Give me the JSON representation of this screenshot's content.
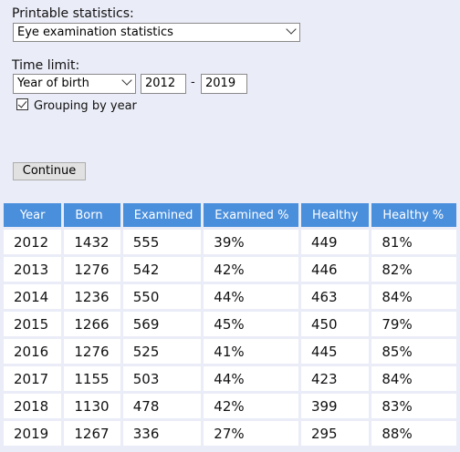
{
  "form": {
    "statistics_label": "Printable statistics:",
    "statistics_value": "Eye examination statistics",
    "time_limit_label": "Time limit:",
    "time_limit_value": "Year of birth",
    "from_year": "2012",
    "range_separator": "-",
    "to_year": "2019",
    "grouping_label": "Grouping by year",
    "grouping_checked": true,
    "continue_label": "Continue"
  },
  "table": {
    "headers": [
      "Year",
      "Born",
      "Examined",
      "Examined %",
      "Healthy",
      "Healthy %"
    ],
    "rows": [
      [
        "2012",
        "1432",
        "555",
        "39%",
        "449",
        "81%"
      ],
      [
        "2013",
        "1276",
        "542",
        "42%",
        "446",
        "82%"
      ],
      [
        "2014",
        "1236",
        "550",
        "44%",
        "463",
        "84%"
      ],
      [
        "2015",
        "1266",
        "569",
        "45%",
        "450",
        "79%"
      ],
      [
        "2016",
        "1276",
        "525",
        "41%",
        "445",
        "85%"
      ],
      [
        "2017",
        "1155",
        "503",
        "44%",
        "423",
        "84%"
      ],
      [
        "2018",
        "1130",
        "478",
        "42%",
        "399",
        "83%"
      ],
      [
        "2019",
        "1267",
        "336",
        "27%",
        "295",
        "88%"
      ]
    ]
  },
  "colors": {
    "background": "#eaecf7",
    "header": "#4a8fdc"
  }
}
